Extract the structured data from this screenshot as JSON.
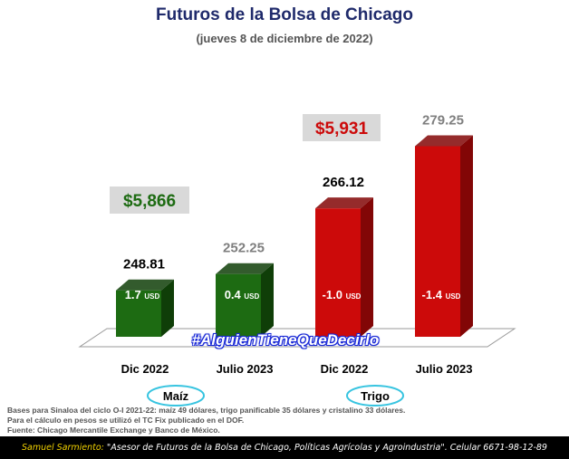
{
  "header": {
    "title": "Futuros de la Bolsa de Chicago",
    "subtitle": "(jueves 8 de diciembre de 2022)"
  },
  "colors": {
    "corn": "#1d6b12",
    "corn_dark": "#0f3e08",
    "wheat": "#cc0a0a",
    "wheat_dark": "#820606",
    "price_box": "#d9d9d9",
    "group_ring": "#37c4e0"
  },
  "chart_data": {
    "type": "bar",
    "categories": [
      "Dic 2022",
      "Julio 2023",
      "Dic 2022",
      "Julio 2023"
    ],
    "values": [
      248.81,
      252.25,
      266.12,
      279.25
    ],
    "value_labels": [
      "248.81",
      "252.25",
      "266.12",
      "279.25"
    ],
    "change_labels": [
      "1.7",
      "0.4",
      "-1.0",
      "-1.4"
    ],
    "change_unit": "USD",
    "groups": [
      {
        "name": "Maíz",
        "price": "$5,866"
      },
      {
        "name": "Trigo",
        "price": "$5,931"
      }
    ],
    "title": "Futuros de la Bolsa de Chicago",
    "xlabel": "",
    "ylabel": ""
  },
  "notes": [
    "Bases para Sinaloa del ciclo O-I 2021-22: maíz 49 dólares, trigo panificable 35 dólares y cristalino 33 dólares.",
    "Para el cálculo en pesos se utilizó el TC Fix publicado en el DOF.",
    "Fuente: Chicago Mercantile Exchange y Banco de México."
  ],
  "hashtag": "#AlguienTieneQueDecirlo",
  "footer": {
    "author": "Samuel Sarmiento:",
    "text": " \"Asesor de Futuros de la Bolsa de Chicago, Políticas Agrícolas y Agroindustria\". Celular 6671-98-12-89"
  }
}
